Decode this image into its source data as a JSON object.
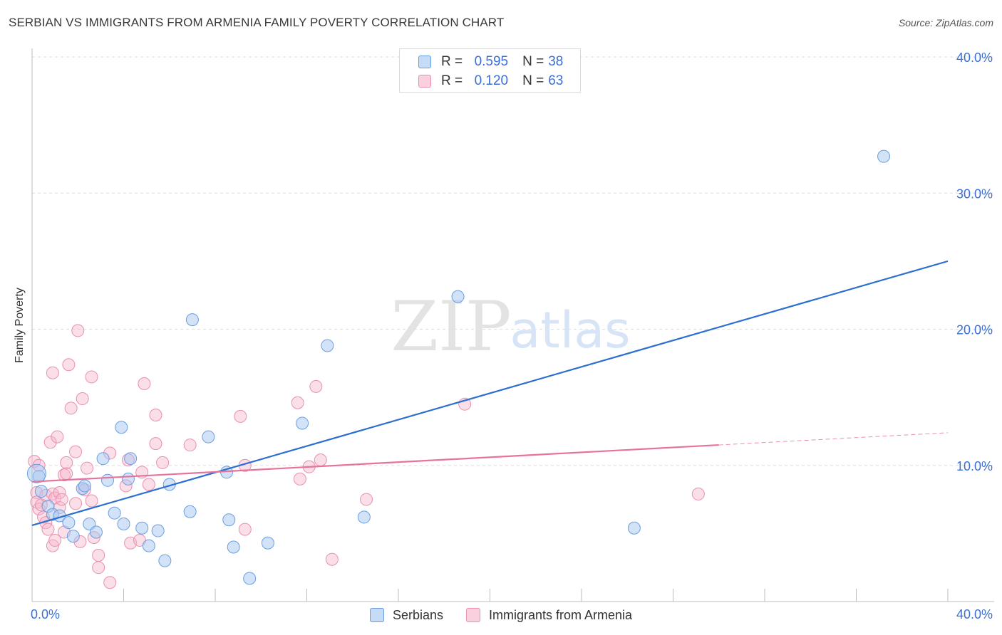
{
  "title": "SERBIAN VS IMMIGRANTS FROM ARMENIA FAMILY POVERTY CORRELATION CHART",
  "source": "Source: ZipAtlas.com",
  "watermark": {
    "zip": "ZIP",
    "atlas": "atlas"
  },
  "colors": {
    "blue_fill": "#a8c8f0",
    "blue_stroke": "#6a9ee0",
    "blue_line": "#2c6fcf",
    "pink_fill": "#f6b8cc",
    "pink_stroke": "#ea8fae",
    "pink_line": "#e7739d",
    "axis_label": "#3a6fd8"
  },
  "legend": {
    "serbians": {
      "r_label": "R =",
      "r_value": "0.595",
      "n_label": "N =",
      "n_value": "38"
    },
    "armenia": {
      "r_label": "R =",
      "r_value": "0.120",
      "n_label": "N =",
      "n_value": "63"
    }
  },
  "bottom_legend": {
    "serbians": "Serbians",
    "armenia": "Immigrants from Armenia"
  },
  "chart_data": {
    "type": "scatter",
    "title": "SERBIAN VS IMMIGRANTS FROM ARMENIA FAMILY POVERTY CORRELATION CHART",
    "xlabel": "",
    "ylabel": "Family Poverty",
    "xlim": [
      0,
      40
    ],
    "ylim": [
      0,
      40
    ],
    "x_tick_labels": [
      "0.0%",
      "40.0%"
    ],
    "y_ticks": [
      10,
      20,
      30,
      40
    ],
    "y_tick_labels": [
      "10.0%",
      "20.0%",
      "30.0%",
      "40.0%"
    ],
    "grid": true,
    "series": [
      {
        "name": "Serbians",
        "R": 0.595,
        "N": 38,
        "trend": {
          "x": [
            0,
            40
          ],
          "y": [
            5.6,
            25.0
          ]
        },
        "points": [
          [
            0.3,
            9.2
          ],
          [
            0.4,
            8.1
          ],
          [
            0.7,
            7.0
          ],
          [
            0.9,
            6.4
          ],
          [
            1.2,
            6.3
          ],
          [
            1.6,
            5.8
          ],
          [
            1.8,
            4.8
          ],
          [
            2.2,
            8.3
          ],
          [
            2.3,
            8.5
          ],
          [
            2.5,
            5.7
          ],
          [
            2.8,
            5.1
          ],
          [
            3.1,
            10.5
          ],
          [
            3.3,
            8.9
          ],
          [
            3.6,
            6.5
          ],
          [
            3.9,
            12.8
          ],
          [
            4.0,
            5.7
          ],
          [
            4.2,
            9.0
          ],
          [
            4.3,
            10.5
          ],
          [
            4.8,
            5.4
          ],
          [
            5.1,
            4.1
          ],
          [
            5.5,
            5.2
          ],
          [
            5.8,
            3.0
          ],
          [
            6.0,
            8.6
          ],
          [
            6.9,
            6.6
          ],
          [
            7.0,
            20.7
          ],
          [
            7.7,
            12.1
          ],
          [
            8.5,
            9.5
          ],
          [
            8.6,
            6.0
          ],
          [
            8.8,
            4.0
          ],
          [
            9.5,
            1.7
          ],
          [
            10.3,
            4.3
          ],
          [
            11.8,
            13.1
          ],
          [
            12.9,
            18.8
          ],
          [
            14.5,
            6.2
          ],
          [
            18.6,
            22.4
          ],
          [
            26.3,
            5.4
          ],
          [
            37.2,
            32.7
          ],
          [
            0.2,
            9.4
          ]
        ]
      },
      {
        "name": "Immigrants from Armenia",
        "R": 0.12,
        "N": 63,
        "trend": {
          "x": [
            0,
            30
          ],
          "y": [
            8.8,
            11.5
          ]
        },
        "trend_dashed": {
          "x": [
            30,
            40
          ],
          "y": [
            11.5,
            12.4
          ]
        },
        "points": [
          [
            0.1,
            10.3
          ],
          [
            0.2,
            8.0
          ],
          [
            0.2,
            7.3
          ],
          [
            0.3,
            10.0
          ],
          [
            0.3,
            6.8
          ],
          [
            0.4,
            7.1
          ],
          [
            0.5,
            6.2
          ],
          [
            0.6,
            7.8
          ],
          [
            0.6,
            5.8
          ],
          [
            0.7,
            5.3
          ],
          [
            0.8,
            11.7
          ],
          [
            0.9,
            7.9
          ],
          [
            0.9,
            4.1
          ],
          [
            0.9,
            16.8
          ],
          [
            1.0,
            4.5
          ],
          [
            1.0,
            7.6
          ],
          [
            1.1,
            12.1
          ],
          [
            1.2,
            6.9
          ],
          [
            1.2,
            8.0
          ],
          [
            1.3,
            7.5
          ],
          [
            1.4,
            5.1
          ],
          [
            1.4,
            9.3
          ],
          [
            1.5,
            9.4
          ],
          [
            1.5,
            10.2
          ],
          [
            1.6,
            17.4
          ],
          [
            1.7,
            14.2
          ],
          [
            1.9,
            11.0
          ],
          [
            1.9,
            7.2
          ],
          [
            2.0,
            19.9
          ],
          [
            2.1,
            4.4
          ],
          [
            2.2,
            14.9
          ],
          [
            2.3,
            8.2
          ],
          [
            2.4,
            9.8
          ],
          [
            2.6,
            16.5
          ],
          [
            2.6,
            7.4
          ],
          [
            2.7,
            4.7
          ],
          [
            2.9,
            2.5
          ],
          [
            2.9,
            3.4
          ],
          [
            3.4,
            1.4
          ],
          [
            3.4,
            10.9
          ],
          [
            4.1,
            8.5
          ],
          [
            4.2,
            10.4
          ],
          [
            4.3,
            4.3
          ],
          [
            4.7,
            4.5
          ],
          [
            4.8,
            9.5
          ],
          [
            4.9,
            16.0
          ],
          [
            5.1,
            8.6
          ],
          [
            5.4,
            13.7
          ],
          [
            5.4,
            11.6
          ],
          [
            5.7,
            10.2
          ],
          [
            6.9,
            11.5
          ],
          [
            9.1,
            13.6
          ],
          [
            9.3,
            10.0
          ],
          [
            9.3,
            5.3
          ],
          [
            11.6,
            14.6
          ],
          [
            11.7,
            9.0
          ],
          [
            12.1,
            9.9
          ],
          [
            12.4,
            15.8
          ],
          [
            12.6,
            10.4
          ],
          [
            13.1,
            3.1
          ],
          [
            14.6,
            7.5
          ],
          [
            18.9,
            14.5
          ],
          [
            29.1,
            7.9
          ]
        ]
      }
    ]
  }
}
